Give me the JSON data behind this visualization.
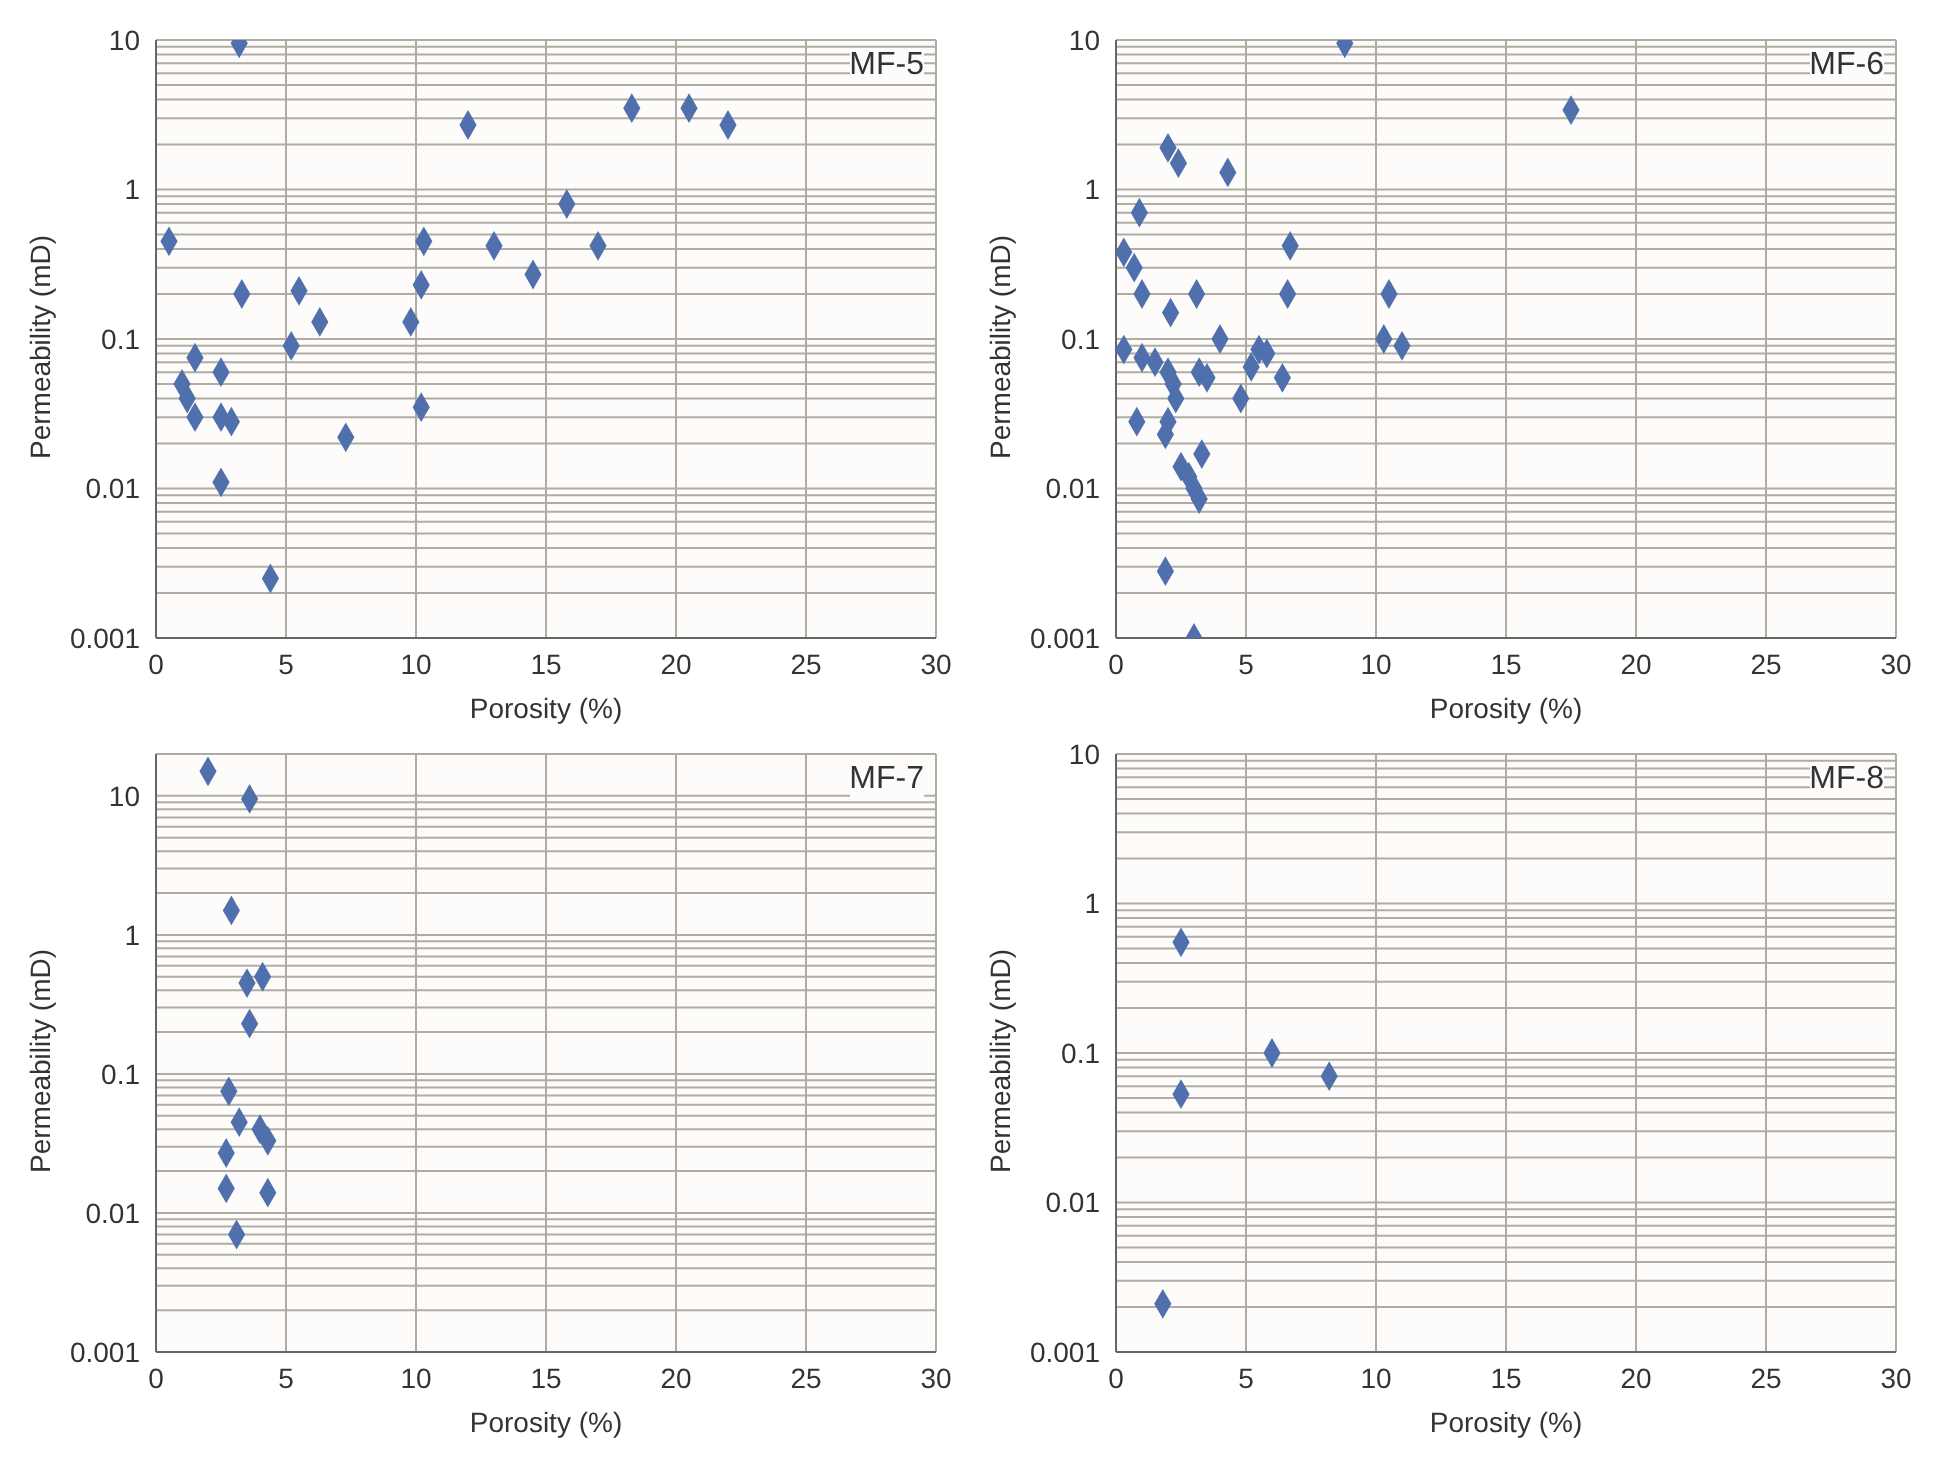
{
  "chart_data": [
    {
      "type": "scatter",
      "title": "MF-5",
      "xlabel": "Porosity (%)",
      "ylabel": "Permeability (mD)",
      "log": "y",
      "grid": true,
      "marker": "diamond",
      "legend": false,
      "xlim": [
        0,
        30
      ],
      "xticks": [
        0,
        5,
        10,
        15,
        20,
        25,
        30
      ],
      "ylim": [
        0.001,
        10
      ],
      "yticks": [
        0.001,
        0.01,
        0.1,
        1,
        10
      ],
      "series": [
        {
          "color": "#4f6fad",
          "x": [
            3.2,
            12,
            18.3,
            20.5,
            22,
            15.8,
            0.5,
            10.3,
            13,
            17,
            14.5,
            10.2,
            3.3,
            5.5,
            6.3,
            9.8,
            5.2,
            1.5,
            2.5,
            1,
            1.2,
            1.5,
            2.5,
            2.9,
            10.2,
            7.3,
            2.5,
            4.4
          ],
          "values": [
            9.5,
            2.7,
            3.5,
            3.5,
            2.7,
            0.8,
            0.45,
            0.45,
            0.42,
            0.42,
            0.27,
            0.23,
            0.2,
            0.21,
            0.13,
            0.13,
            0.09,
            0.075,
            0.06,
            0.05,
            0.04,
            0.03,
            0.03,
            0.028,
            0.035,
            0.022,
            0.011,
            0.0025
          ]
        }
      ]
    },
    {
      "type": "scatter",
      "title": "MF-6",
      "xlabel": "Porosity (%)",
      "ylabel": "Permeability (mD)",
      "log": "y",
      "grid": true,
      "marker": "diamond",
      "legend": false,
      "xlim": [
        0,
        30
      ],
      "xticks": [
        0,
        5,
        10,
        15,
        20,
        25,
        30
      ],
      "ylim": [
        0.001,
        10
      ],
      "yticks": [
        0.001,
        0.01,
        0.1,
        1,
        10
      ],
      "series": [
        {
          "color": "#4f6fad",
          "x": [
            8.8,
            17.5,
            2,
            2.4,
            4.3,
            0.9,
            0.3,
            0.7,
            6.7,
            1,
            3.1,
            6.6,
            10.5,
            2.1,
            4,
            10.3,
            11,
            0.3,
            1,
            1.5,
            5.5,
            5.8,
            5.2,
            2,
            2.2,
            3.2,
            3.5,
            6.4,
            2.3,
            4.8,
            0.8,
            2,
            1.9,
            3.3,
            2.5,
            2.8,
            3,
            3.2,
            1.9,
            3
          ],
          "values": [
            9.5,
            3.4,
            1.9,
            1.5,
            1.3,
            0.7,
            0.38,
            0.3,
            0.42,
            0.2,
            0.2,
            0.2,
            0.2,
            0.15,
            0.1,
            0.1,
            0.09,
            0.085,
            0.075,
            0.07,
            0.085,
            0.08,
            0.065,
            0.06,
            0.05,
            0.06,
            0.055,
            0.055,
            0.04,
            0.04,
            0.028,
            0.028,
            0.023,
            0.017,
            0.014,
            0.012,
            0.01,
            0.0085,
            0.0028,
            0.001
          ]
        }
      ]
    },
    {
      "type": "scatter",
      "title": "MF-7",
      "xlabel": "Porosity (%)",
      "ylabel": "Permeability (mD)",
      "log": "y",
      "grid": true,
      "marker": "diamond",
      "legend": false,
      "xlim": [
        0,
        30
      ],
      "xticks": [
        0,
        5,
        10,
        15,
        20,
        25,
        30
      ],
      "ylim": [
        0.001,
        20
      ],
      "yticks": [
        0.001,
        0.01,
        0.1,
        1,
        10
      ],
      "series": [
        {
          "color": "#4f6fad",
          "x": [
            2,
            3.6,
            2.9,
            3.5,
            4.1,
            3.6,
            2.8,
            3.2,
            4,
            4.3,
            2.7,
            2.7,
            4.3,
            3.1
          ],
          "values": [
            15,
            9.5,
            1.5,
            0.45,
            0.5,
            0.23,
            0.075,
            0.045,
            0.04,
            0.033,
            0.027,
            0.015,
            0.014,
            0.007
          ]
        }
      ]
    },
    {
      "type": "scatter",
      "title": "MF-8",
      "xlabel": "Porosity (%)",
      "ylabel": "Permeability (mD)",
      "log": "y",
      "grid": true,
      "marker": "diamond",
      "legend": false,
      "xlim": [
        0,
        30
      ],
      "xticks": [
        0,
        5,
        10,
        15,
        20,
        25,
        30
      ],
      "ylim": [
        0.001,
        10
      ],
      "yticks": [
        0.001,
        0.01,
        0.1,
        1,
        10
      ],
      "series": [
        {
          "color": "#4f6fad",
          "x": [
            2.5,
            2.5,
            6,
            8.2,
            1.8
          ],
          "values": [
            0.55,
            0.053,
            0.1,
            0.07,
            0.0021
          ]
        }
      ]
    }
  ]
}
